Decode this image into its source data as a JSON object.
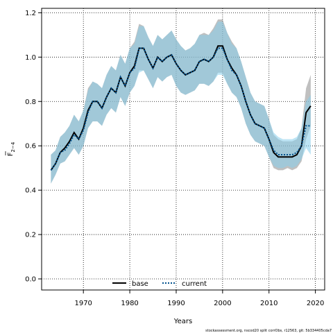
{
  "chart_data": {
    "type": "area",
    "xlabel": "Years",
    "ylabel": {
      "base": "F",
      "subscript": "2−4"
    },
    "xlim": [
      1961,
      2022
    ],
    "ylim": [
      -0.05,
      1.22
    ],
    "xticks": [
      "1970",
      "1980",
      "1990",
      "2000",
      "2010",
      "2020"
    ],
    "yticks": [
      "0.0",
      "0.2",
      "0.4",
      "0.6",
      "0.8",
      "1.0",
      "1.2"
    ],
    "grid": true,
    "legend_position": "bottom-center",
    "legend": [
      {
        "label": "base",
        "style": "solid",
        "color": "#000000"
      },
      {
        "label": "current",
        "style": "dotted",
        "color": "#00508c"
      }
    ],
    "footer": "stockassessment.org, nscod20 split corrObs, r12563, git: 5b334405cda7",
    "x": [
      1963,
      1964,
      1965,
      1966,
      1967,
      1968,
      1969,
      1970,
      1971,
      1972,
      1973,
      1974,
      1975,
      1976,
      1977,
      1978,
      1979,
      1980,
      1981,
      1982,
      1983,
      1984,
      1985,
      1986,
      1987,
      1988,
      1989,
      1990,
      1991,
      1992,
      1993,
      1994,
      1995,
      1996,
      1997,
      1998,
      1999,
      2000,
      2001,
      2002,
      2003,
      2004,
      2005,
      2006,
      2007,
      2008,
      2009,
      2010,
      2011,
      2012,
      2013,
      2014,
      2015,
      2016,
      2017,
      2018,
      2019
    ],
    "series": [
      {
        "name": "base",
        "color": "#000000",
        "band_color": "#8c8c8c",
        "values": [
          0.49,
          0.52,
          0.57,
          0.59,
          0.62,
          0.66,
          0.63,
          0.68,
          0.76,
          0.8,
          0.8,
          0.77,
          0.82,
          0.86,
          0.84,
          0.91,
          0.87,
          0.93,
          0.96,
          1.04,
          1.04,
          0.99,
          0.95,
          1.0,
          0.98,
          1.0,
          1.01,
          0.97,
          0.94,
          0.92,
          0.93,
          0.94,
          0.98,
          0.99,
          0.98,
          1.0,
          1.05,
          1.05,
          0.99,
          0.95,
          0.92,
          0.87,
          0.8,
          0.74,
          0.7,
          0.69,
          0.68,
          0.63,
          0.57,
          0.55,
          0.55,
          0.55,
          0.55,
          0.56,
          0.6,
          0.75,
          0.78
        ],
        "lower": [
          0.43,
          0.47,
          0.52,
          0.53,
          0.56,
          0.59,
          0.56,
          0.6,
          0.68,
          0.71,
          0.71,
          0.69,
          0.74,
          0.77,
          0.75,
          0.82,
          0.78,
          0.84,
          0.87,
          0.94,
          0.94,
          0.9,
          0.86,
          0.91,
          0.89,
          0.91,
          0.92,
          0.87,
          0.84,
          0.83,
          0.84,
          0.85,
          0.88,
          0.88,
          0.87,
          0.89,
          0.93,
          0.93,
          0.88,
          0.84,
          0.82,
          0.77,
          0.7,
          0.65,
          0.62,
          0.61,
          0.6,
          0.55,
          0.5,
          0.49,
          0.49,
          0.5,
          0.49,
          0.5,
          0.53,
          0.63,
          0.69
        ],
        "upper": [
          0.56,
          0.58,
          0.64,
          0.66,
          0.69,
          0.74,
          0.71,
          0.76,
          0.86,
          0.89,
          0.88,
          0.86,
          0.92,
          0.96,
          0.94,
          1.01,
          0.97,
          1.04,
          1.07,
          1.15,
          1.14,
          1.09,
          1.05,
          1.1,
          1.08,
          1.1,
          1.12,
          1.08,
          1.05,
          1.03,
          1.04,
          1.06,
          1.1,
          1.11,
          1.1,
          1.13,
          1.17,
          1.17,
          1.11,
          1.07,
          1.04,
          0.98,
          0.91,
          0.84,
          0.8,
          0.79,
          0.78,
          0.72,
          0.65,
          0.63,
          0.62,
          0.62,
          0.62,
          0.63,
          0.68,
          0.86,
          0.92
        ]
      },
      {
        "name": "current",
        "color": "#00508c",
        "band_color": "#87ceeb",
        "values": [
          0.49,
          0.52,
          0.57,
          0.58,
          0.61,
          0.65,
          0.63,
          0.67,
          0.75,
          0.8,
          0.8,
          0.77,
          0.82,
          0.86,
          0.84,
          0.91,
          0.87,
          0.93,
          0.95,
          1.04,
          1.04,
          0.99,
          0.95,
          1.0,
          0.98,
          1.0,
          1.01,
          0.97,
          0.94,
          0.92,
          0.93,
          0.94,
          0.98,
          0.99,
          0.98,
          1.0,
          1.04,
          1.04,
          0.99,
          0.94,
          0.92,
          0.87,
          0.8,
          0.74,
          0.7,
          0.69,
          0.68,
          0.63,
          0.58,
          0.56,
          0.56,
          0.56,
          0.56,
          0.57,
          0.6,
          0.69,
          0.69
        ],
        "lower": [
          0.43,
          0.47,
          0.52,
          0.53,
          0.56,
          0.59,
          0.56,
          0.6,
          0.68,
          0.71,
          0.71,
          0.69,
          0.74,
          0.77,
          0.75,
          0.82,
          0.78,
          0.84,
          0.87,
          0.93,
          0.94,
          0.9,
          0.86,
          0.91,
          0.89,
          0.91,
          0.92,
          0.87,
          0.84,
          0.83,
          0.84,
          0.85,
          0.88,
          0.88,
          0.87,
          0.89,
          0.92,
          0.92,
          0.88,
          0.84,
          0.82,
          0.77,
          0.7,
          0.65,
          0.62,
          0.61,
          0.6,
          0.55,
          0.51,
          0.5,
          0.5,
          0.51,
          0.5,
          0.51,
          0.54,
          0.59,
          0.56
        ],
        "upper": [
          0.56,
          0.58,
          0.64,
          0.66,
          0.69,
          0.74,
          0.71,
          0.76,
          0.85,
          0.89,
          0.88,
          0.86,
          0.92,
          0.96,
          0.94,
          1.01,
          0.97,
          1.04,
          1.06,
          1.14,
          1.14,
          1.09,
          1.05,
          1.1,
          1.08,
          1.1,
          1.12,
          1.08,
          1.05,
          1.03,
          1.04,
          1.06,
          1.1,
          1.1,
          1.1,
          1.12,
          1.16,
          1.16,
          1.11,
          1.06,
          1.04,
          0.98,
          0.91,
          0.84,
          0.8,
          0.79,
          0.78,
          0.72,
          0.66,
          0.64,
          0.63,
          0.63,
          0.63,
          0.64,
          0.68,
          0.8,
          0.83
        ]
      }
    ]
  }
}
